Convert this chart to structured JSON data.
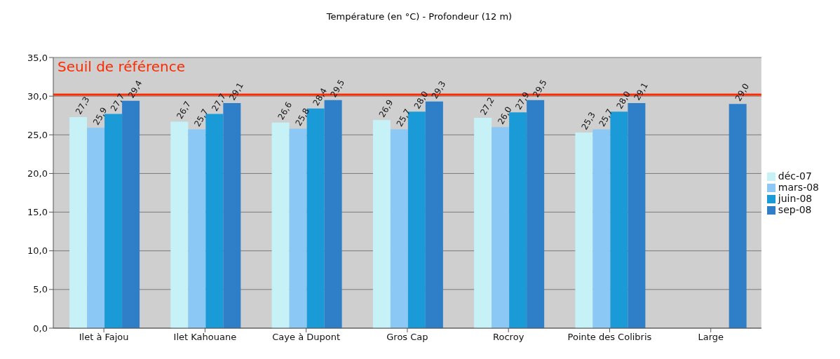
{
  "chart_data": {
    "type": "bar",
    "title": "Température (en °C) - Profondeur (12 m)",
    "categories": [
      "Ilet à Fajou",
      "Ilet Kahouane",
      "Caye à Dupont",
      "Gros Cap",
      "Rocroy",
      "Pointe des Colibris",
      "Large"
    ],
    "series": [
      {
        "name": "déc-07",
        "color": "#c6f2f7",
        "values": [
          27.3,
          26.7,
          26.6,
          26.9,
          27.2,
          25.3,
          null
        ],
        "value_labels": [
          "27,3",
          "26,7",
          "26,6",
          "26,9",
          "27,2",
          "25,3",
          null
        ]
      },
      {
        "name": "mars-08",
        "color": "#8cc8f5",
        "values": [
          25.9,
          25.7,
          25.8,
          25.7,
          26.0,
          25.7,
          null
        ],
        "value_labels": [
          "25,9",
          "25,7",
          "25,8",
          "25,7",
          "26,0",
          "25,7",
          null
        ]
      },
      {
        "name": "juin-08",
        "color": "#1a9ad6",
        "values": [
          27.7,
          27.7,
          28.4,
          28.0,
          27.9,
          28.0,
          null
        ],
        "value_labels": [
          "27,7",
          "27,7",
          "28,4",
          "28,0",
          "27,9",
          "28,0",
          null
        ]
      },
      {
        "name": "sep-08",
        "color": "#2f7fc8",
        "values": [
          29.4,
          29.1,
          29.5,
          29.3,
          29.5,
          29.1,
          29.0
        ],
        "value_labels": [
          "29,4",
          "29,1",
          "29,5",
          "29,3",
          "29,5",
          "29,1",
          "29,0"
        ]
      }
    ],
    "ylim": [
      0,
      35
    ],
    "yticks": [
      {
        "value": 0,
        "label": "0,0"
      },
      {
        "value": 5,
        "label": "5,0"
      },
      {
        "value": 10,
        "label": "10,0"
      },
      {
        "value": 15,
        "label": "15,0"
      },
      {
        "value": 20,
        "label": "20,0"
      },
      {
        "value": 25,
        "label": "25,0"
      },
      {
        "value": 30,
        "label": "30,0"
      },
      {
        "value": 35,
        "label": "35,0"
      }
    ],
    "ref_lines": [
      {
        "axis": "y",
        "value": 30.2,
        "label": "Seuil de référence",
        "color": "#ff2a00"
      }
    ],
    "grid": "y",
    "legend": "right"
  }
}
